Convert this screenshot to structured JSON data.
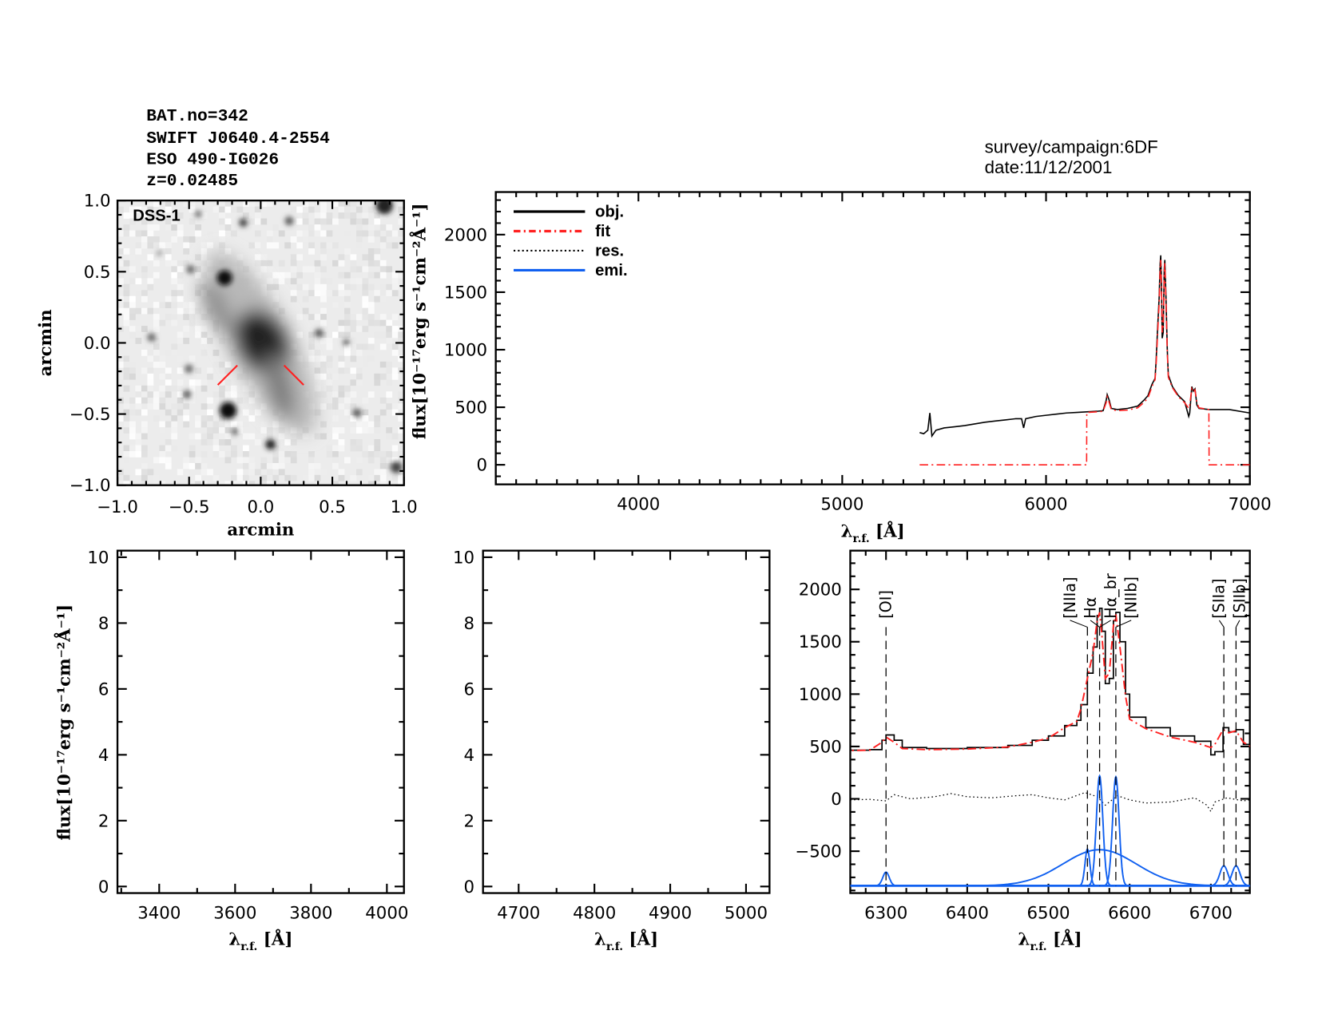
{
  "header": {
    "lines": [
      "BAT.no=342",
      "SWIFT J0640.4-2554",
      "ESO 490-IG026",
      "z=0.02485"
    ],
    "survey": [
      "survey/campaign:6DF",
      "date:11/12/2001"
    ]
  },
  "colors": {
    "obj": "#000000",
    "fit": "#ff2020",
    "res": "#000000",
    "emi": "#1060f0",
    "marker": "#ff2020"
  },
  "chart_data": [
    {
      "id": "image",
      "type": "heatmap",
      "label": "DSS-1",
      "xlabel": "arcmin",
      "ylabel": "arcmin",
      "xlim": [
        -1.0,
        1.0
      ],
      "ylim": [
        -1.0,
        1.0
      ],
      "xticks": [
        "-1.0",
        "-0.5",
        "0.0",
        "0.5",
        "1.0"
      ],
      "yticks": [
        "-1.0",
        "-0.5",
        "0.0",
        "0.5",
        "1.0"
      ],
      "colormap": "inverted grayscale"
    },
    {
      "id": "full",
      "type": "line",
      "xlabel": "λ",
      "xlabel_sub": "r.f.",
      "xlabel_unit": " [Å]",
      "ylabel": "flux[10⁻¹⁷erg s⁻¹cm⁻²Å⁻¹]",
      "xlim": [
        3300,
        7000
      ],
      "ylim": [
        -170,
        2370
      ],
      "xticks": [
        4000,
        5000,
        6000,
        7000
      ],
      "yticks": [
        0,
        500,
        1000,
        1500,
        2000
      ],
      "legend": {
        "placement": "top-left",
        "entries": [
          "obj.",
          "fit",
          "res.",
          "emi."
        ]
      },
      "series": [
        {
          "name": "obj.",
          "style": "solid",
          "x": [
            5380,
            5400,
            5420,
            5430,
            5440,
            5460,
            5500,
            5550,
            5600,
            5650,
            5700,
            5750,
            5800,
            5850,
            5880,
            5890,
            5900,
            5950,
            6000,
            6050,
            6100,
            6150,
            6200,
            6250,
            6280,
            6295,
            6300,
            6310,
            6320,
            6350,
            6400,
            6450,
            6480,
            6500,
            6520,
            6535,
            6540,
            6548,
            6555,
            6560,
            6563,
            6566,
            6570,
            6575,
            6580,
            6583,
            6588,
            6595,
            6600,
            6620,
            6650,
            6680,
            6700,
            6705,
            6715,
            6722,
            6731,
            6740,
            6750,
            6800,
            6900,
            7000
          ],
          "y": [
            280,
            270,
            300,
            450,
            250,
            300,
            320,
            330,
            340,
            355,
            370,
            380,
            390,
            400,
            400,
            320,
            400,
            420,
            430,
            440,
            450,
            455,
            460,
            465,
            470,
            560,
            610,
            560,
            490,
            480,
            490,
            510,
            560,
            600,
            700,
            750,
            900,
            1200,
            1450,
            1750,
            1820,
            1600,
            1100,
            1150,
            1700,
            1780,
            1500,
            1000,
            780,
            680,
            600,
            550,
            420,
            450,
            680,
            640,
            660,
            520,
            490,
            480,
            480,
            450
          ]
        },
        {
          "name": "fit",
          "style": "dash-dot",
          "x": [
            5380,
            6199,
            6200,
            6250,
            6280,
            6295,
            6300,
            6310,
            6320,
            6350,
            6400,
            6450,
            6480,
            6500,
            6520,
            6535,
            6540,
            6548,
            6555,
            6560,
            6563,
            6566,
            6570,
            6575,
            6580,
            6583,
            6588,
            6595,
            6600,
            6620,
            6650,
            6680,
            6700,
            6705,
            6715,
            6722,
            6731,
            6740,
            6750,
            6799,
            6800,
            7000
          ],
          "y": [
            0,
            0,
            455,
            460,
            465,
            540,
            590,
            540,
            480,
            470,
            475,
            495,
            540,
            580,
            680,
            740,
            860,
            1150,
            1400,
            1700,
            1780,
            1550,
            1150,
            1200,
            1650,
            1760,
            1450,
            980,
            760,
            670,
            590,
            540,
            490,
            520,
            660,
            630,
            650,
            540,
            495,
            480,
            0,
            0
          ]
        },
        {
          "name": "res.",
          "style": "dotted",
          "x": [],
          "y": []
        },
        {
          "name": "emi.",
          "style": "solid",
          "x": [],
          "y": []
        }
      ]
    },
    {
      "id": "blue1",
      "type": "line",
      "xlabel": "λ",
      "xlabel_sub": "r.f.",
      "xlabel_unit": " [Å]",
      "ylabel": "flux[10⁻¹⁷erg s⁻¹cm⁻²Å⁻¹]",
      "xlim": [
        3290,
        4045
      ],
      "ylim": [
        -0.2,
        10.2
      ],
      "xticks": [
        3400,
        3600,
        3800,
        4000
      ],
      "yticks": [
        0,
        2,
        4,
        6,
        8,
        10
      ],
      "series": []
    },
    {
      "id": "blue2",
      "type": "line",
      "xlabel": "λ",
      "xlabel_sub": "r.f.",
      "xlabel_unit": " [Å]",
      "xlim": [
        4653,
        5031
      ],
      "ylim": [
        -0.2,
        10.2
      ],
      "xticks": [
        4700,
        4800,
        4900,
        5000
      ],
      "yticks": [
        0,
        2,
        4,
        6,
        8,
        10
      ],
      "series": []
    },
    {
      "id": "halpha",
      "type": "line",
      "xlabel": "λ",
      "xlabel_sub": "r.f.",
      "xlabel_unit": " [Å]",
      "xlim": [
        6256,
        6748
      ],
      "ylim": [
        -900,
        2370
      ],
      "xticks": [
        6300,
        6400,
        6500,
        6600,
        6700
      ],
      "yticks": [
        -500,
        0,
        500,
        1000,
        1500,
        2000
      ],
      "lines": [
        {
          "label": "[OI]",
          "x": 6300
        },
        {
          "label": "[NIIa]",
          "x": 6548
        },
        {
          "label": "Hα",
          "x": 6563
        },
        {
          "label": "Hα_br",
          "x": 6563
        },
        {
          "label": "[NIIb]",
          "x": 6583
        },
        {
          "label": "[SIIa]",
          "x": 6716
        },
        {
          "label": "[SIIb]",
          "x": 6731
        }
      ],
      "residual": {
        "x": [
          6256,
          6280,
          6300,
          6310,
          6330,
          6360,
          6380,
          6400,
          6430,
          6460,
          6480,
          6500,
          6520,
          6545,
          6560,
          6570,
          6585,
          6600,
          6620,
          6650,
          6680,
          6695,
          6700,
          6705,
          6720,
          6740,
          6748
        ],
        "y": [
          -10,
          -5,
          -20,
          40,
          0,
          20,
          50,
          20,
          10,
          30,
          40,
          10,
          -10,
          60,
          20,
          -60,
          30,
          -10,
          -40,
          -30,
          10,
          -60,
          -120,
          -30,
          10,
          -20,
          -10
        ]
      },
      "emission_offset": -830,
      "emission_components": [
        {
          "name": "[OI]",
          "center": 6300,
          "amplitude": 130,
          "sigma": 4
        },
        {
          "name": "[NIIa]",
          "center": 6548,
          "amplitude": 350,
          "sigma": 3
        },
        {
          "name": "Hα",
          "center": 6563,
          "amplitude": 1050,
          "sigma": 4
        },
        {
          "name": "Hα_br",
          "center": 6563,
          "amplitude": 345,
          "sigma": 45
        },
        {
          "name": "[NIIb]",
          "center": 6583,
          "amplitude": 1040,
          "sigma": 4
        },
        {
          "name": "[SIIa]",
          "center": 6716,
          "amplitude": 190,
          "sigma": 5
        },
        {
          "name": "[SIIb]",
          "center": 6731,
          "amplitude": 190,
          "sigma": 5
        }
      ]
    }
  ]
}
